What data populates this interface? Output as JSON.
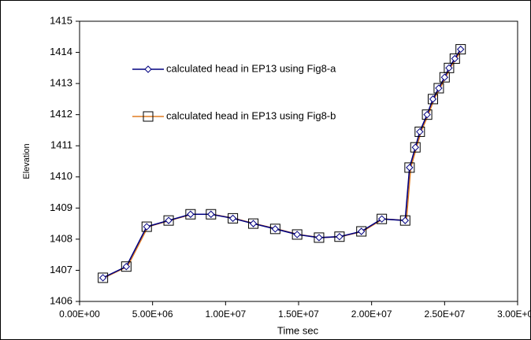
{
  "chart_data": {
    "type": "line",
    "x_label": "Time sec",
    "y_label": "Elevation",
    "x": [
      1600000,
      3200000,
      4600000,
      6100000,
      7600000,
      9000000,
      10500000,
      11900000,
      13400000,
      14900000,
      16400000,
      17800000,
      19300000,
      20700000,
      22300000,
      22600000,
      23000000,
      23300000,
      23800000,
      24200000,
      24600000,
      25000000,
      25300000,
      25700000,
      26100000
    ],
    "series": [
      {
        "name": "calculated head in EP13 using  Fig8-a",
        "color": "#000080",
        "marker": "diamond",
        "values": [
          1406.76,
          1407.12,
          1408.4,
          1408.6,
          1408.8,
          1408.8,
          1408.67,
          1408.5,
          1408.33,
          1408.15,
          1408.05,
          1408.08,
          1408.25,
          1408.65,
          1408.6,
          1410.3,
          1410.95,
          1411.45,
          1412.0,
          1412.5,
          1412.85,
          1413.2,
          1413.5,
          1413.8,
          1414.1
        ]
      },
      {
        "name": "calculated head in EP13 using Fig8-b",
        "color": "#e07b20",
        "marker": "square",
        "values": [
          1406.76,
          1407.12,
          1408.4,
          1408.6,
          1408.8,
          1408.8,
          1408.67,
          1408.5,
          1408.33,
          1408.15,
          1408.05,
          1408.08,
          1408.25,
          1408.65,
          1408.6,
          1410.3,
          1410.95,
          1411.45,
          1412.0,
          1412.5,
          1412.85,
          1413.2,
          1413.5,
          1413.8,
          1414.1
        ]
      }
    ],
    "xlim": [
      0,
      30000000
    ],
    "xticks": [
      {
        "value": 0,
        "label": "0.00E+00"
      },
      {
        "value": 5000000,
        "label": "5.00E+06"
      },
      {
        "value": 10000000,
        "label": "1.00E+07"
      },
      {
        "value": 15000000,
        "label": "1.50E+07"
      },
      {
        "value": 20000000,
        "label": "2.00E+07"
      },
      {
        "value": 25000000,
        "label": "2.50E+07"
      },
      {
        "value": 30000000,
        "label": "3.00E+07"
      }
    ],
    "ylim": [
      1406,
      1415
    ],
    "yticks": [
      1406,
      1407,
      1408,
      1409,
      1410,
      1411,
      1412,
      1413,
      1414,
      1415
    ],
    "legend": "upper left",
    "grid": false
  }
}
